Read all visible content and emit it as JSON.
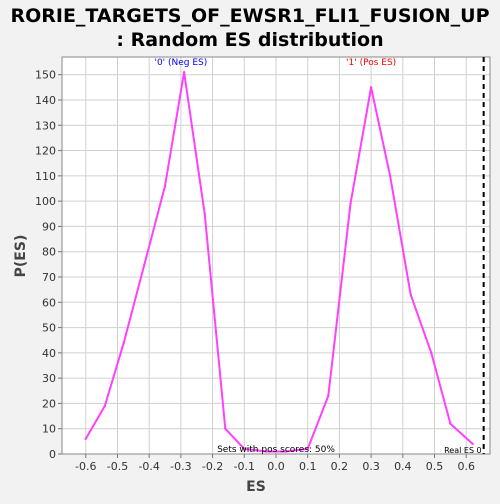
{
  "chart_data": {
    "type": "line",
    "title_line1": "RORIE_TARGETS_OF_EWSR1_FLI1_FUSION_UP",
    "title_line2": ": Random ES distribution",
    "xlabel": "ES",
    "ylabel": "P(ES)",
    "xlim": [
      -0.675,
      0.675
    ],
    "ylim": [
      0,
      157
    ],
    "x_ticks": [
      -0.6,
      -0.5,
      -0.4,
      -0.3,
      -0.2,
      -0.1,
      0.0,
      0.1,
      0.2,
      0.3,
      0.4,
      0.5,
      0.6
    ],
    "x_tick_labels": [
      "-0.6",
      "-0.5",
      "-0.4",
      "-0.3",
      "-0.2",
      "-0.1",
      "0.0",
      "0.1",
      "0.2",
      "0.3",
      "0.4",
      "0.5",
      "0.6"
    ],
    "y_ticks": [
      0,
      10,
      20,
      30,
      40,
      50,
      60,
      70,
      80,
      90,
      100,
      110,
      120,
      130,
      140,
      150
    ],
    "y_tick_labels": [
      "0",
      "10",
      "20",
      "30",
      "40",
      "50",
      "60",
      "70",
      "80",
      "90",
      "100",
      "110",
      "120",
      "130",
      "140",
      "150"
    ],
    "series": [
      {
        "name": "Random ES distribution",
        "color": "#ff40ff",
        "x": [
          -0.6,
          -0.54,
          -0.48,
          -0.415,
          -0.35,
          -0.29,
          -0.225,
          -0.16,
          -0.1,
          -0.03,
          0.03,
          0.1,
          0.165,
          0.235,
          0.3,
          0.36,
          0.425,
          0.49,
          0.55,
          0.62
        ],
        "y": [
          6,
          19,
          44,
          75,
          106,
          151,
          95,
          10,
          2,
          1,
          1,
          2,
          23,
          99,
          145,
          110,
          63,
          40,
          12,
          4
        ]
      }
    ],
    "real_es": {
      "x": 0.655,
      "label": "Real ES 0",
      "color": "#000000"
    },
    "annotations": [
      {
        "text": "'0' (Neg ES)",
        "color": "#0000ff",
        "x": -0.3,
        "y": 155
      },
      {
        "text": "'1' (Pos ES)",
        "color": "#ff0000",
        "x": 0.3,
        "y": 155
      },
      {
        "text": "Sets with pos scores: 50%",
        "color": "#000000",
        "x": 0.0,
        "y": 0.5
      }
    ],
    "grid": true,
    "background": "#ffffff",
    "grid_color": "#d0d0d0"
  }
}
